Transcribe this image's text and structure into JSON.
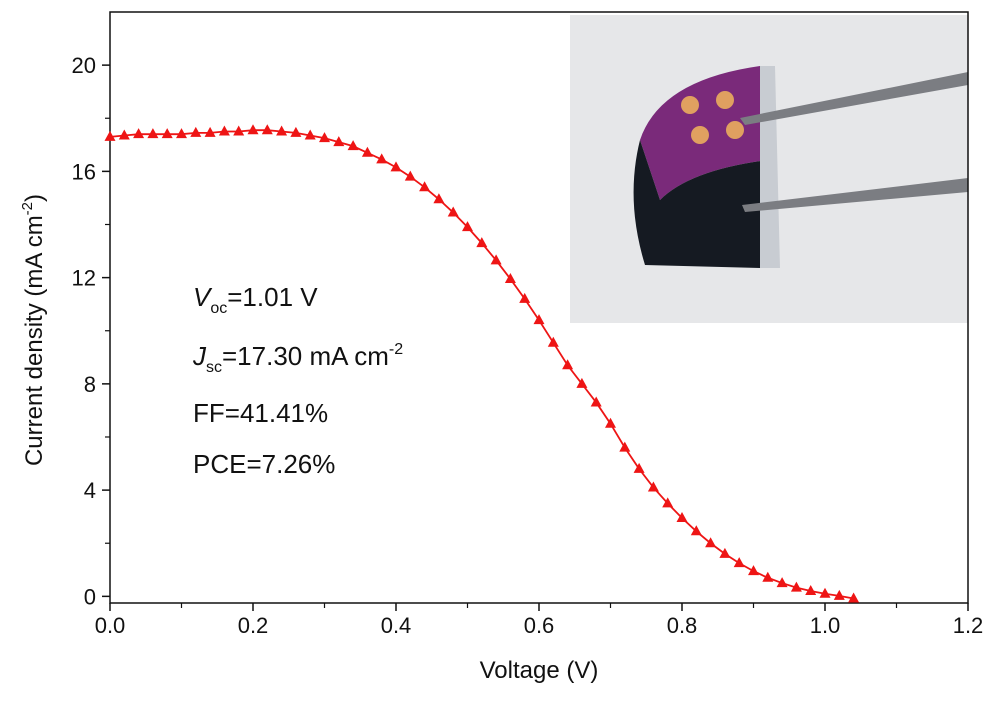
{
  "chart_data": {
    "type": "line",
    "x_label": "Voltage (V)",
    "y_label": {
      "text": "Current density (mA cm",
      "sup": "-2",
      "end": ")"
    },
    "annotations": [
      {
        "var": "V",
        "sub": "oc",
        "text": "=1.01 V"
      },
      {
        "var": "J",
        "sub": "sc",
        "text": "=17.30 mA cm",
        "sup": "-2"
      },
      {
        "text": "FF=41.41%"
      },
      {
        "text": "PCE=7.26%"
      }
    ],
    "xlim": [
      0,
      1.2
    ],
    "ylim": [
      -0.25,
      22
    ],
    "xticks": [
      {
        "value": 0,
        "label": "0.0"
      },
      {
        "value": 0.2,
        "label": "0.2"
      },
      {
        "value": 0.4,
        "label": "0.4"
      },
      {
        "value": 0.6,
        "label": "0.6"
      },
      {
        "value": 0.8,
        "label": "0.8"
      },
      {
        "value": 1.0,
        "label": "1.0"
      },
      {
        "value": 1.2,
        "label": "1.2"
      }
    ],
    "yticks": [
      0,
      4,
      8,
      12,
      16,
      20
    ],
    "x": [
      0,
      0.02,
      0.04,
      0.06,
      0.08,
      0.1,
      0.12,
      0.14,
      0.16,
      0.18,
      0.2,
      0.22,
      0.24,
      0.26,
      0.28,
      0.3,
      0.32,
      0.34,
      0.36,
      0.38,
      0.4,
      0.42,
      0.44,
      0.46,
      0.48,
      0.5,
      0.52,
      0.54,
      0.56,
      0.58,
      0.6,
      0.62,
      0.64,
      0.66,
      0.68,
      0.7,
      0.72,
      0.74,
      0.76,
      0.78,
      0.8,
      0.82,
      0.84,
      0.86,
      0.88,
      0.9,
      0.92,
      0.94,
      0.96,
      0.98,
      1.0,
      1.02,
      1.04
    ],
    "series": [
      {
        "color": "#ee1515",
        "values": [
          17.3,
          17.35,
          17.4,
          17.4,
          17.4,
          17.4,
          17.45,
          17.45,
          17.5,
          17.5,
          17.55,
          17.55,
          17.5,
          17.45,
          17.35,
          17.25,
          17.1,
          16.95,
          16.7,
          16.45,
          16.15,
          15.8,
          15.4,
          14.95,
          14.45,
          13.9,
          13.3,
          12.65,
          11.95,
          11.2,
          10.4,
          9.55,
          8.7,
          8.0,
          7.3,
          6.5,
          5.6,
          4.8,
          4.1,
          3.5,
          2.95,
          2.45,
          2.0,
          1.6,
          1.25,
          0.95,
          0.7,
          0.5,
          0.33,
          0.2,
          0.1,
          0.02,
          -0.08
        ]
      }
    ]
  }
}
